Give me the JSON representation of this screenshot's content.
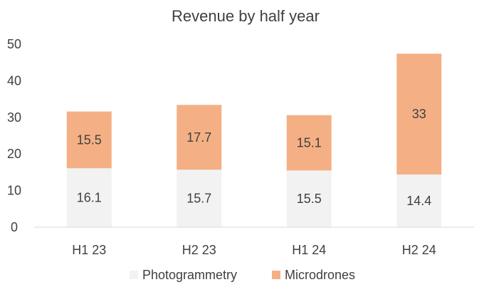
{
  "chart_data": {
    "type": "bar",
    "stacked": true,
    "title": "Revenue by half year",
    "xlabel": "",
    "ylabel": "",
    "categories": [
      "H1 23",
      "H2 23",
      "H1 24",
      "H2 24"
    ],
    "series": [
      {
        "name": "Photogrammetry",
        "values": [
          16.1,
          15.7,
          15.5,
          14.4
        ],
        "color": "#F2F2F2"
      },
      {
        "name": "Microdrones",
        "values": [
          15.5,
          17.7,
          15.1,
          33
        ],
        "color": "#F4B084"
      }
    ],
    "data_labels": [
      [
        "16.1",
        "15.7",
        "15.5",
        "14.4"
      ],
      [
        "15.5",
        "17.7",
        "15.1",
        "33"
      ]
    ],
    "ylim": [
      0,
      50
    ],
    "yticks": [
      0,
      10,
      20,
      30,
      40,
      50
    ],
    "ytick_labels": [
      "0",
      "10",
      "20",
      "30",
      "40",
      "50"
    ],
    "grid": false,
    "legend_position": "bottom",
    "axis_color": "#D9D9D9",
    "text_color": "#404040"
  }
}
